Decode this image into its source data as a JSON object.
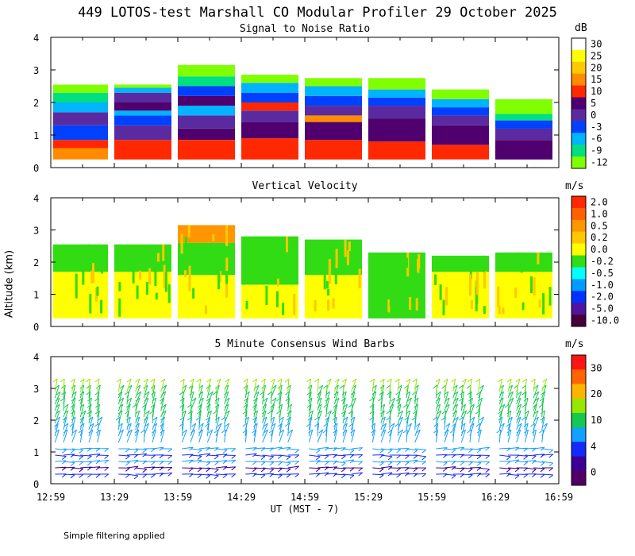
{
  "title": "449 LOTOS-test Marshall CO Modular Profiler 29 October 2025",
  "footer_note": "Simple filtering applied",
  "xaxis": {
    "label": "UT  (MST - 7)",
    "ticks": [
      "12:59",
      "13:29",
      "13:59",
      "14:29",
      "14:59",
      "15:29",
      "15:59",
      "16:29",
      "16:59"
    ]
  },
  "yaxis_label": "Altitude (km)",
  "chart_data": [
    {
      "type": "heatmap",
      "title": "Signal to Noise Ratio",
      "unit": "dB",
      "ylim": [
        0,
        4
      ],
      "yticks": [
        "0",
        "1",
        "2",
        "3",
        "4"
      ],
      "colorbar": {
        "labels": [
          "30",
          "25",
          "20",
          "15",
          "10",
          "5",
          "0",
          "-3",
          "-6",
          "-9",
          "-12"
        ],
        "colors": [
          "#ffffff",
          "#ffff00",
          "#ffc800",
          "#ff8c00",
          "#ff2800",
          "#50006e",
          "#5a2ba0",
          "#0040ff",
          "#00b4ff",
          "#00e080",
          "#80ff00"
        ]
      },
      "blocks": [
        {
          "start": "13:00",
          "end": "13:26",
          "layers": [
            {
              "from": 0.25,
              "to": 0.6,
              "color": "#ff8c00"
            },
            {
              "from": 0.6,
              "to": 0.85,
              "color": "#ff2800"
            },
            {
              "from": 0.85,
              "to": 1.3,
              "color": "#0040ff"
            },
            {
              "from": 1.3,
              "to": 1.7,
              "color": "#5a2ba0"
            },
            {
              "from": 1.7,
              "to": 2.0,
              "color": "#00b4ff"
            },
            {
              "from": 2.0,
              "to": 2.3,
              "color": "#00e080"
            },
            {
              "from": 2.3,
              "to": 2.55,
              "color": "#80ff00"
            }
          ]
        },
        {
          "start": "13:29",
          "end": "13:56",
          "layers": [
            {
              "from": 0.25,
              "to": 0.85,
              "color": "#ff2800"
            },
            {
              "from": 0.85,
              "to": 1.3,
              "color": "#5a2ba0"
            },
            {
              "from": 1.3,
              "to": 1.6,
              "color": "#0040ff"
            },
            {
              "from": 1.6,
              "to": 1.75,
              "color": "#00b4ff"
            },
            {
              "from": 1.75,
              "to": 2.0,
              "color": "#50006e"
            },
            {
              "from": 2.0,
              "to": 2.3,
              "color": "#5a2ba0"
            },
            {
              "from": 2.3,
              "to": 2.45,
              "color": "#00b4ff"
            },
            {
              "from": 2.45,
              "to": 2.55,
              "color": "#80ff00"
            }
          ]
        },
        {
          "start": "13:59",
          "end": "14:26",
          "layers": [
            {
              "from": 0.25,
              "to": 0.85,
              "color": "#ff2800"
            },
            {
              "from": 0.85,
              "to": 1.2,
              "color": "#50006e"
            },
            {
              "from": 1.2,
              "to": 1.6,
              "color": "#5a2ba0"
            },
            {
              "from": 1.6,
              "to": 1.9,
              "color": "#00b4ff"
            },
            {
              "from": 1.9,
              "to": 2.2,
              "color": "#50006e"
            },
            {
              "from": 2.2,
              "to": 2.5,
              "color": "#0040ff"
            },
            {
              "from": 2.5,
              "to": 2.8,
              "color": "#00e080"
            },
            {
              "from": 2.8,
              "to": 3.15,
              "color": "#80ff00"
            }
          ]
        },
        {
          "start": "14:29",
          "end": "14:56",
          "layers": [
            {
              "from": 0.25,
              "to": 0.9,
              "color": "#ff2800"
            },
            {
              "from": 0.9,
              "to": 1.4,
              "color": "#50006e"
            },
            {
              "from": 1.4,
              "to": 1.75,
              "color": "#5a2ba0"
            },
            {
              "from": 1.75,
              "to": 2.0,
              "color": "#ff2800"
            },
            {
              "from": 2.0,
              "to": 2.3,
              "color": "#0040ff"
            },
            {
              "from": 2.3,
              "to": 2.6,
              "color": "#00b4ff"
            },
            {
              "from": 2.6,
              "to": 2.85,
              "color": "#80ff00"
            }
          ]
        },
        {
          "start": "14:59",
          "end": "15:26",
          "layers": [
            {
              "from": 0.25,
              "to": 0.85,
              "color": "#ff2800"
            },
            {
              "from": 0.85,
              "to": 1.4,
              "color": "#50006e"
            },
            {
              "from": 1.4,
              "to": 1.6,
              "color": "#ff8c00"
            },
            {
              "from": 1.6,
              "to": 1.9,
              "color": "#5a2ba0"
            },
            {
              "from": 1.9,
              "to": 2.2,
              "color": "#0040ff"
            },
            {
              "from": 2.2,
              "to": 2.5,
              "color": "#00b4ff"
            },
            {
              "from": 2.5,
              "to": 2.75,
              "color": "#80ff00"
            }
          ]
        },
        {
          "start": "15:29",
          "end": "15:56",
          "layers": [
            {
              "from": 0.25,
              "to": 0.8,
              "color": "#ff2800"
            },
            {
              "from": 0.8,
              "to": 1.5,
              "color": "#50006e"
            },
            {
              "from": 1.5,
              "to": 1.9,
              "color": "#5a2ba0"
            },
            {
              "from": 1.9,
              "to": 2.15,
              "color": "#0040ff"
            },
            {
              "from": 2.15,
              "to": 2.4,
              "color": "#00b4ff"
            },
            {
              "from": 2.4,
              "to": 2.75,
              "color": "#80ff00"
            }
          ]
        },
        {
          "start": "15:59",
          "end": "16:26",
          "layers": [
            {
              "from": 0.25,
              "to": 0.7,
              "color": "#ff2800"
            },
            {
              "from": 0.7,
              "to": 1.3,
              "color": "#50006e"
            },
            {
              "from": 1.3,
              "to": 1.6,
              "color": "#5a2ba0"
            },
            {
              "from": 1.6,
              "to": 1.85,
              "color": "#0040ff"
            },
            {
              "from": 1.85,
              "to": 2.1,
              "color": "#00b4ff"
            },
            {
              "from": 2.1,
              "to": 2.4,
              "color": "#80ff00"
            }
          ]
        },
        {
          "start": "16:29",
          "end": "16:56",
          "layers": [
            {
              "from": 0.25,
              "to": 0.85,
              "color": "#50006e"
            },
            {
              "from": 0.85,
              "to": 1.2,
              "color": "#5a2ba0"
            },
            {
              "from": 1.2,
              "to": 1.45,
              "color": "#0040ff"
            },
            {
              "from": 1.45,
              "to": 1.65,
              "color": "#00e080"
            },
            {
              "from": 1.65,
              "to": 2.1,
              "color": "#80ff00"
            }
          ]
        }
      ]
    },
    {
      "type": "heatmap",
      "title": "Vertical Velocity",
      "unit": "m/s",
      "ylim": [
        0,
        4
      ],
      "yticks": [
        "0",
        "1",
        "2",
        "3",
        "4"
      ],
      "colorbar": {
        "labels": [
          "2.0",
          "1.0",
          "0.5",
          "0.2",
          "0.0",
          "-0.2",
          "-0.5",
          "-1.0",
          "-2.0",
          "-5.0",
          "-10.0"
        ],
        "colors": [
          "#ff2800",
          "#ff6000",
          "#ff9600",
          "#ffc800",
          "#ffff00",
          "#32dc14",
          "#00ffff",
          "#009bff",
          "#0032ff",
          "#5014a0",
          "#46003c"
        ]
      },
      "blocks": [
        {
          "start": "13:00",
          "end": "13:26",
          "layers": [
            {
              "from": 0.25,
              "to": 1.7,
              "color": "#ffff00"
            },
            {
              "from": 1.7,
              "to": 2.55,
              "color": "#32dc14"
            }
          ]
        },
        {
          "start": "13:29",
          "end": "13:56",
          "layers": [
            {
              "from": 0.25,
              "to": 1.7,
              "color": "#ffff00"
            },
            {
              "from": 1.7,
              "to": 2.55,
              "color": "#32dc14"
            }
          ]
        },
        {
          "start": "13:59",
          "end": "14:26",
          "layers": [
            {
              "from": 0.25,
              "to": 1.6,
              "color": "#ffff00"
            },
            {
              "from": 1.6,
              "to": 2.6,
              "color": "#32dc14"
            },
            {
              "from": 2.6,
              "to": 3.15,
              "color": "#ff9600"
            }
          ]
        },
        {
          "start": "14:29",
          "end": "14:56",
          "layers": [
            {
              "from": 0.25,
              "to": 1.3,
              "color": "#ffff00"
            },
            {
              "from": 1.3,
              "to": 2.8,
              "color": "#32dc14"
            }
          ]
        },
        {
          "start": "14:59",
          "end": "15:26",
          "layers": [
            {
              "from": 0.25,
              "to": 1.6,
              "color": "#ffff00"
            },
            {
              "from": 1.6,
              "to": 2.7,
              "color": "#32dc14"
            }
          ]
        },
        {
          "start": "15:29",
          "end": "15:56",
          "layers": [
            {
              "from": 0.25,
              "to": 2.3,
              "color": "#32dc14"
            }
          ]
        },
        {
          "start": "15:59",
          "end": "16:26",
          "layers": [
            {
              "from": 0.25,
              "to": 1.7,
              "color": "#ffff00"
            },
            {
              "from": 1.7,
              "to": 2.2,
              "color": "#32dc14"
            }
          ]
        },
        {
          "start": "16:29",
          "end": "16:56",
          "layers": [
            {
              "from": 0.25,
              "to": 1.7,
              "color": "#ffff00"
            },
            {
              "from": 1.7,
              "to": 2.3,
              "color": "#32dc14"
            }
          ]
        }
      ]
    },
    {
      "type": "wind_barbs",
      "title": "5 Minute Consensus Wind Barbs",
      "unit": "m/s",
      "ylim": [
        0,
        4
      ],
      "yticks": [
        "0",
        "1",
        "2",
        "3",
        "4"
      ],
      "colorbar": {
        "labels": [
          "30",
          "20",
          "10",
          "4",
          "0"
        ],
        "colors": [
          "#ff1414",
          "#ff6400",
          "#ffb400",
          "#96e600",
          "#14c850",
          "#14a0ff",
          "#1428ff",
          "#3c0096",
          "#500064"
        ]
      },
      "altitudes_km": [
        0.3,
        0.5,
        0.7,
        0.9,
        1.1,
        1.3,
        1.5,
        1.7,
        1.9,
        2.1,
        2.3,
        2.5,
        2.7,
        2.9
      ],
      "altitude_colors": [
        "#1428ff",
        "#3c0096",
        "#14a0ff",
        "#1428ff",
        "#14a0ff",
        "#14a0ff",
        "#14a0ff",
        "#14a0ff",
        "#14c850",
        "#14c850",
        "#14c850",
        "#14c850",
        "#14c850",
        "#96e600"
      ],
      "times": [
        "13:01",
        "13:05",
        "13:09",
        "13:13",
        "13:17",
        "13:21",
        "13:31",
        "13:35",
        "13:39",
        "13:43",
        "13:47",
        "13:51",
        "14:01",
        "14:05",
        "14:09",
        "14:13",
        "14:17",
        "14:21",
        "14:31",
        "14:35",
        "14:39",
        "14:43",
        "14:47",
        "14:51",
        "15:01",
        "15:05",
        "15:09",
        "15:13",
        "15:17",
        "15:21",
        "15:31",
        "15:35",
        "15:39",
        "15:43",
        "15:47",
        "15:51",
        "16:01",
        "16:05",
        "16:09",
        "16:13",
        "16:17",
        "16:21",
        "16:31",
        "16:35",
        "16:39",
        "16:43",
        "16:47",
        "16:51"
      ]
    }
  ]
}
